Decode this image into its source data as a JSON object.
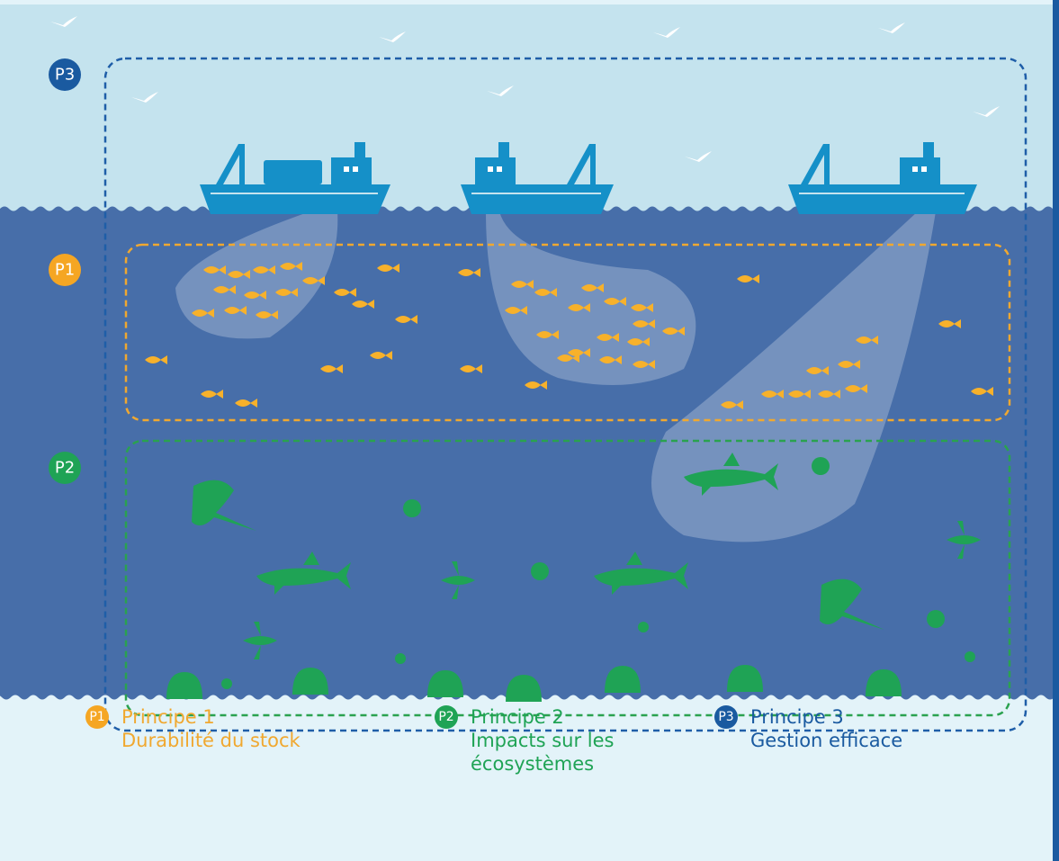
{
  "badges": {
    "p3": "P3",
    "p1": "P1",
    "p2": "P2"
  },
  "legend": [
    {
      "badge": "P1",
      "title": "Principe 1",
      "lines": [
        "Durabilité du stock"
      ]
    },
    {
      "badge": "P2",
      "title": "Principe 2",
      "lines": [
        "Impacts sur les",
        "écosystèmes"
      ]
    },
    {
      "badge": "P3",
      "title": "Principe 3",
      "lines": [
        "Gestion efficace"
      ]
    }
  ]
}
